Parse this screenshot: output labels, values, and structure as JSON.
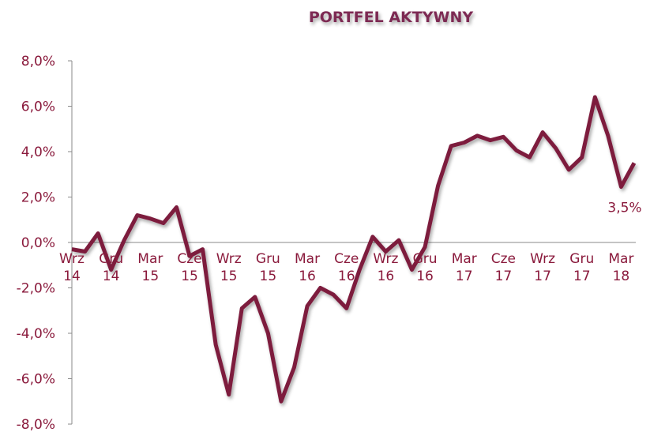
{
  "chart_data": {
    "type": "line",
    "title": "PORTFEL AKTYWNY",
    "categories": [
      "Wrz 14",
      null,
      null,
      "Gru 14",
      null,
      null,
      "Mar 15",
      null,
      null,
      "Cze 15",
      null,
      null,
      "Wrz 15",
      null,
      null,
      "Gru 15",
      null,
      null,
      "Mar 16",
      null,
      null,
      "Cze 16",
      null,
      null,
      "Wrz 16",
      null,
      null,
      "Gru 16",
      null,
      null,
      "Mar 17",
      null,
      null,
      "Cze 17",
      null,
      null,
      "Wrz 17",
      null,
      null,
      "Gru 17",
      null,
      null,
      "Mar 18",
      null
    ],
    "values": [
      -0.3,
      -0.4,
      0.4,
      -1.2,
      0.1,
      1.2,
      1.05,
      0.85,
      1.55,
      -0.6,
      -0.3,
      -4.5,
      -6.7,
      -2.9,
      -2.4,
      -4.0,
      -7.0,
      -5.5,
      -2.8,
      -2.0,
      -2.3,
      -2.9,
      -1.2,
      0.25,
      -0.4,
      0.1,
      -1.2,
      -0.2,
      2.5,
      4.25,
      4.4,
      4.7,
      4.5,
      4.65,
      4.05,
      3.75,
      4.85,
      4.15,
      3.2,
      3.75,
      6.4,
      4.7,
      2.45,
      3.5
    ],
    "value_labels": [
      null,
      null,
      null,
      null,
      null,
      null,
      null,
      null,
      null,
      null,
      null,
      null,
      null,
      null,
      null,
      null,
      null,
      null,
      null,
      null,
      null,
      null,
      null,
      null,
      null,
      null,
      null,
      null,
      null,
      null,
      null,
      null,
      null,
      null,
      null,
      null,
      null,
      null,
      null,
      null,
      null,
      null,
      null,
      "3,5%"
    ],
    "color": "#7d1a3e",
    "ylim": [
      -8,
      8
    ],
    "yticks": [
      {
        "value": -8,
        "label": "-8,0%"
      },
      {
        "value": -6,
        "label": "-6,0%"
      },
      {
        "value": -4,
        "label": "-4,0%"
      },
      {
        "value": -2,
        "label": "-2,0%"
      },
      {
        "value": 0,
        "label": "0,0%"
      },
      {
        "value": 2,
        "label": "2,0%"
      },
      {
        "value": 4,
        "label": "4,0%"
      },
      {
        "value": 6,
        "label": "6,0%"
      },
      {
        "value": 8,
        "label": "8,0%"
      }
    ]
  }
}
